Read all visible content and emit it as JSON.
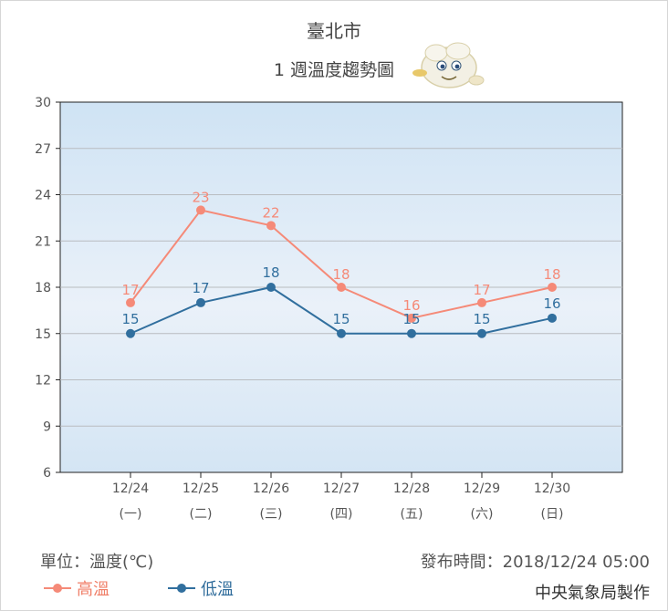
{
  "header": {
    "city": "臺北市",
    "subtitle": "1 週溫度趨勢圖"
  },
  "footer": {
    "unit": "單位：溫度(℃)",
    "issued": "發布時間：2018/12/24 05:00",
    "maker": "中央氣象局製作"
  },
  "colors": {
    "high": "#f58a78",
    "low": "#316f9e",
    "plot_bg_top": "#cfe3f4",
    "plot_bg_mid": "#eaf1f9"
  },
  "chart_data": {
    "type": "line",
    "categories": [
      "12/24",
      "12/25",
      "12/26",
      "12/27",
      "12/28",
      "12/29",
      "12/30"
    ],
    "weekdays": [
      "(一)",
      "(二)",
      "(三)",
      "(四)",
      "(五)",
      "(六)",
      "(日)"
    ],
    "series": [
      {
        "name": "高溫",
        "values": [
          17,
          23,
          22,
          18,
          16,
          17,
          18
        ]
      },
      {
        "name": "低溫",
        "values": [
          15,
          17,
          18,
          15,
          15,
          15,
          16
        ]
      }
    ],
    "yticks": [
      6,
      9,
      12,
      15,
      18,
      21,
      24,
      27,
      30
    ],
    "ylim": [
      6,
      30
    ],
    "grid": true,
    "legend": "bottom-left"
  }
}
